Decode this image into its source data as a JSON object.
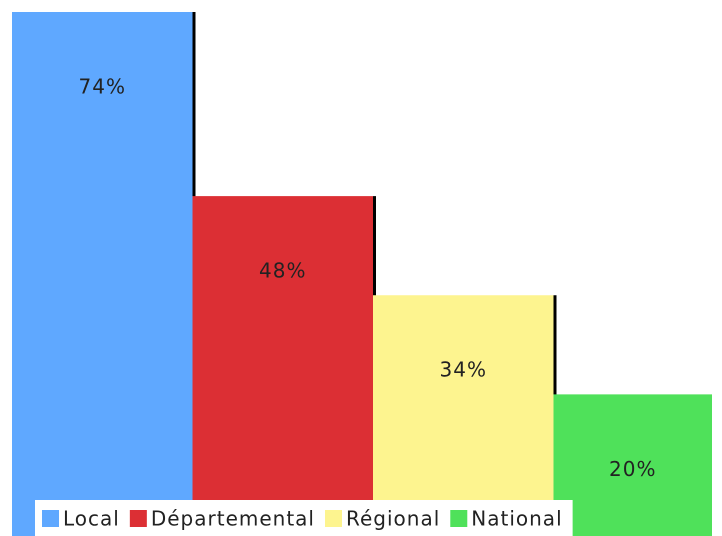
{
  "chart_data": {
    "type": "bar",
    "categories": [
      "Local",
      "Départemental",
      "Régional",
      "National"
    ],
    "values": [
      74,
      48,
      34,
      20
    ],
    "value_labels": [
      "74%",
      "48%",
      "34%",
      "20%"
    ],
    "colors": [
      "#5fa8ff",
      "#dc2f34",
      "#fdf48f",
      "#4fe15a"
    ],
    "ylim": [
      0,
      74
    ],
    "legend": "bottom"
  }
}
